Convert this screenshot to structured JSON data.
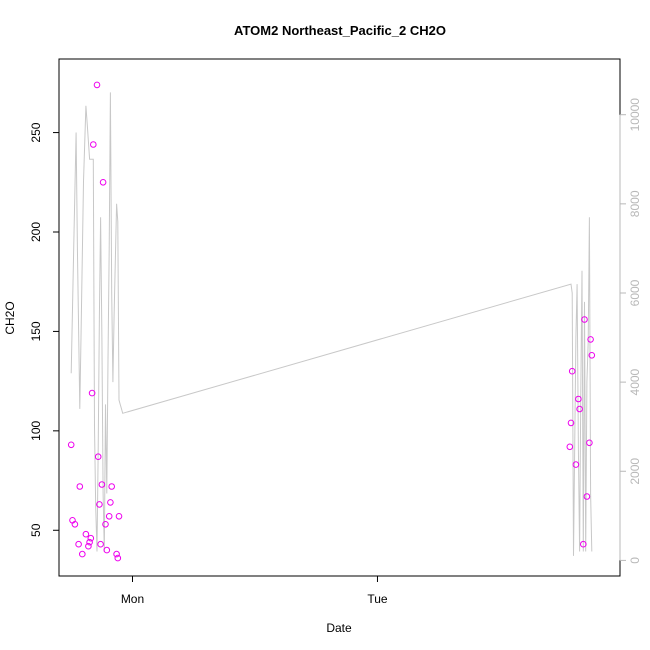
{
  "chart_data": {
    "type": "scatter",
    "title": "ATOM2 Northeast_Pacific_2 CH2O",
    "xlabel": "Date",
    "ylabel": "CH2O",
    "y2label": "",
    "x_tick_labels": [
      {
        "label": "Mon",
        "x": 1.0
      },
      {
        "label": "Tue",
        "x": 2.0
      }
    ],
    "xlim": [
      0.7,
      2.99
    ],
    "ylim": [
      27,
      287
    ],
    "y_ticks": [
      50,
      100,
      150,
      200,
      250
    ],
    "y2lim": [
      -350,
      11250
    ],
    "y2_ticks": [
      0,
      2000,
      4000,
      6000,
      8000,
      10000
    ],
    "grid": false,
    "series": [
      {
        "kind": "points",
        "axis": "left",
        "color": "#ee00ee",
        "x": [
          0.75,
          0.755,
          0.765,
          0.78,
          0.785,
          0.795,
          0.81,
          0.82,
          0.825,
          0.83,
          0.835,
          0.84,
          0.855,
          0.86,
          0.865,
          0.87,
          0.875,
          0.88,
          0.89,
          0.895,
          0.905,
          0.91,
          0.915,
          0.935,
          0.94,
          0.945,
          2.785,
          2.79,
          2.795,
          2.81,
          2.82,
          2.825,
          2.84,
          2.845,
          2.855,
          2.865,
          2.87,
          2.875
        ],
        "y": [
          93,
          55,
          53,
          43,
          72,
          38,
          48,
          42,
          44,
          46,
          119,
          244,
          274,
          87,
          63,
          43,
          73,
          225,
          53,
          40,
          57,
          64,
          72,
          38,
          36,
          57,
          92,
          104,
          130,
          83,
          116,
          111,
          43,
          156,
          67,
          94,
          146,
          138
        ]
      },
      {
        "kind": "line",
        "axis": "right",
        "color": "#c8c8c8",
        "x": [
          0.75,
          0.76,
          0.77,
          0.775,
          0.785,
          0.79,
          0.8,
          0.81,
          0.815,
          0.825,
          0.835,
          0.84,
          0.845,
          0.85,
          0.855,
          0.86,
          0.865,
          0.87,
          0.875,
          0.88,
          0.885,
          0.89,
          0.895,
          0.9,
          0.905,
          0.91,
          0.915,
          0.92,
          0.925,
          0.935,
          0.94,
          0.945,
          0.95,
          0.955,
          0.96,
          2.79,
          2.795,
          2.8,
          2.81,
          2.815,
          2.82,
          2.825,
          2.83,
          2.835,
          2.84,
          2.845,
          2.85,
          2.855,
          2.86,
          2.865,
          2.87,
          2.875
        ],
        "y": [
          4200,
          7000,
          9600,
          7000,
          3400,
          5000,
          8500,
          10200,
          9800,
          9000,
          9000,
          9000,
          3000,
          1200,
          200,
          2500,
          5500,
          7700,
          5000,
          1500,
          200,
          3500,
          1500,
          4500,
          7000,
          10500,
          6000,
          4000,
          5500,
          8000,
          7600,
          3600,
          3500,
          3400,
          3300,
          6200,
          6000,
          100,
          5000,
          6200,
          2500,
          200,
          3800,
          6500,
          200,
          5800,
          200,
          4000,
          4900,
          7700,
          1500,
          200
        ]
      }
    ]
  }
}
